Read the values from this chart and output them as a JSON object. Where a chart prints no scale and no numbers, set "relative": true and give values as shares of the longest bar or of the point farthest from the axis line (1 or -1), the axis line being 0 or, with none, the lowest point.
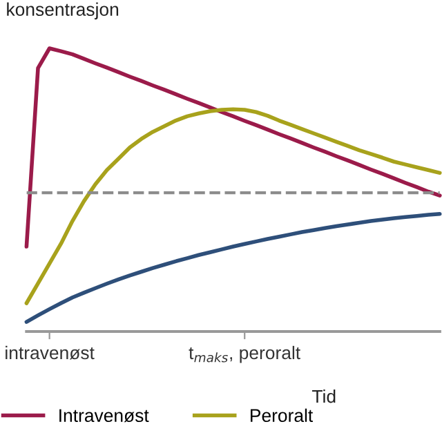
{
  "chart_data": {
    "type": "line",
    "relative": true,
    "ylabel": "konsentrasjon",
    "xlabel": "Tid",
    "categories": [
      null,
      null,
      "intravenøst",
      null,
      null,
      null,
      null,
      null,
      null,
      null,
      null,
      null,
      null,
      null,
      null,
      null,
      null,
      null,
      null,
      "t$_{maks}$, peroralt",
      null,
      null,
      null,
      null,
      null,
      null,
      null,
      null,
      null,
      null,
      null,
      null,
      null,
      null,
      null,
      null,
      null
    ],
    "grid": false,
    "legend": "bottom",
    "marker": "none",
    "line_style": "solid",
    "ref_lines": [
      {
        "axis": "y",
        "value": 0.49,
        "color": "#8c8c8c",
        "line_style": "dashed"
      }
    ],
    "series": [
      {
        "name": "Intravenøst",
        "color": "#9b1b4a",
        "values": [
          0.3,
          0.93,
          1.0,
          0.99,
          0.979,
          0.963,
          0.947,
          0.932,
          0.916,
          0.9,
          0.885,
          0.869,
          0.854,
          0.838,
          0.822,
          0.807,
          0.791,
          0.775,
          0.76,
          0.744,
          0.729,
          0.713,
          0.697,
          0.682,
          0.666,
          0.65,
          0.635,
          0.619,
          0.604,
          0.588,
          0.572,
          0.557,
          0.541,
          0.525,
          0.51,
          0.494,
          0.48
        ]
      },
      {
        "name": "Peroralt",
        "color": "#a8a21c",
        "values": [
          0.1,
          0.17,
          0.24,
          0.31,
          0.39,
          0.46,
          0.52,
          0.57,
          0.61,
          0.65,
          0.68,
          0.705,
          0.725,
          0.745,
          0.76,
          0.77,
          0.778,
          0.783,
          0.785,
          0.783,
          0.775,
          0.762,
          0.745,
          0.73,
          0.715,
          0.7,
          0.685,
          0.67,
          0.655,
          0.64,
          0.627,
          0.614,
          0.6,
          0.59,
          0.58,
          0.57,
          0.56
        ]
      },
      {
        "color": "#2e4f7a",
        "values": [
          0.034,
          0.057,
          0.079,
          0.1,
          0.12,
          0.137,
          0.153,
          0.169,
          0.184,
          0.198,
          0.211,
          0.224,
          0.236,
          0.248,
          0.259,
          0.27,
          0.28,
          0.29,
          0.3,
          0.309,
          0.318,
          0.327,
          0.335,
          0.343,
          0.351,
          0.358,
          0.365,
          0.372,
          0.378,
          0.384,
          0.39,
          0.395,
          0.4,
          0.404,
          0.408,
          0.412,
          0.415
        ]
      }
    ]
  }
}
